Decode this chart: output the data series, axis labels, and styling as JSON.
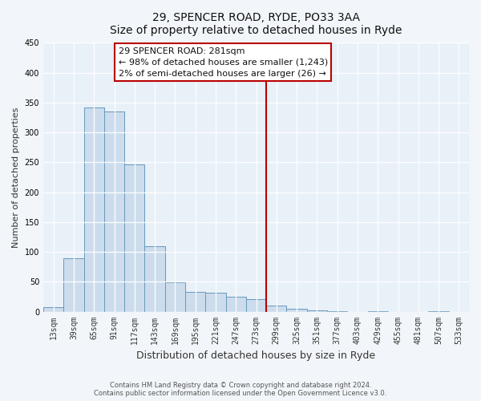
{
  "title": "29, SPENCER ROAD, RYDE, PO33 3AA",
  "subtitle": "Size of property relative to detached houses in Ryde",
  "xlabel": "Distribution of detached houses by size in Ryde",
  "ylabel": "Number of detached properties",
  "bin_labels": [
    "13sqm",
    "39sqm",
    "65sqm",
    "91sqm",
    "117sqm",
    "143sqm",
    "169sqm",
    "195sqm",
    "221sqm",
    "247sqm",
    "273sqm",
    "299sqm",
    "325sqm",
    "351sqm",
    "377sqm",
    "403sqm",
    "429sqm",
    "455sqm",
    "481sqm",
    "507sqm",
    "533sqm"
  ],
  "bar_values": [
    7,
    89,
    342,
    335,
    247,
    110,
    49,
    33,
    31,
    25,
    21,
    10,
    5,
    2,
    1,
    0,
    1,
    0,
    0,
    1,
    0
  ],
  "bar_color": "#ccdcec",
  "bar_edge_color": "#6699bb",
  "vline_color": "#bb0000",
  "ylim": [
    0,
    450
  ],
  "annotation_title": "29 SPENCER ROAD: 281sqm",
  "annotation_line1": "← 98% of detached houses are smaller (1,243)",
  "annotation_line2": "2% of semi-detached houses are larger (26) →",
  "footer_line1": "Contains HM Land Registry data © Crown copyright and database right 2024.",
  "footer_line2": "Contains public sector information licensed under the Open Government Licence v3.0.",
  "background_color": "#f2f6fa",
  "plot_bg_color": "#e8f0f8"
}
